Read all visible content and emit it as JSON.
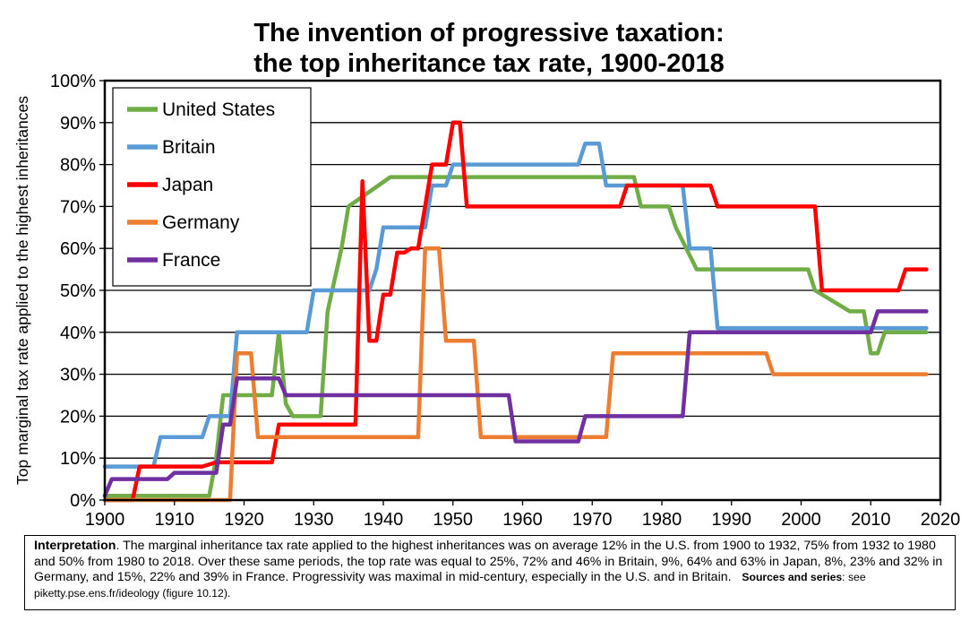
{
  "chart_data": {
    "type": "line",
    "title": [
      "The invention of progressive taxation:",
      "the top inheritance tax rate, 1900-2018"
    ],
    "ylabel": "Top marginal tax rate applied to the highest inheritances",
    "xlabel": "",
    "xlim": [
      1900,
      2020
    ],
    "ylim": [
      0,
      100
    ],
    "x_ticks": [
      1900,
      1910,
      1920,
      1930,
      1940,
      1950,
      1960,
      1970,
      1980,
      1990,
      2000,
      2010,
      2020
    ],
    "y_ticks": [
      0,
      10,
      20,
      30,
      40,
      50,
      60,
      70,
      80,
      90,
      100
    ],
    "y_tick_labels": [
      "0%",
      "10%",
      "20%",
      "30%",
      "40%",
      "50%",
      "60%",
      "70%",
      "80%",
      "90%",
      "100%"
    ],
    "grid": "horizontal",
    "legend": "top-left",
    "series": [
      {
        "name": "United States",
        "color": "#70ad47",
        "points": [
          [
            1900,
            1
          ],
          [
            1915,
            1
          ],
          [
            1916,
            10
          ],
          [
            1917,
            25
          ],
          [
            1924,
            25
          ],
          [
            1925,
            40
          ],
          [
            1926,
            23
          ],
          [
            1927,
            20
          ],
          [
            1931,
            20
          ],
          [
            1932,
            45
          ],
          [
            1934,
            60
          ],
          [
            1935,
            70
          ],
          [
            1941,
            77
          ],
          [
            1976,
            77
          ],
          [
            1977,
            70
          ],
          [
            1981,
            70
          ],
          [
            1982,
            65
          ],
          [
            1985,
            55
          ],
          [
            2001,
            55
          ],
          [
            2002,
            50
          ],
          [
            2007,
            45
          ],
          [
            2009,
            45
          ],
          [
            2010,
            35
          ],
          [
            2011,
            35
          ],
          [
            2012,
            40
          ],
          [
            2018,
            40
          ]
        ]
      },
      {
        "name": "Britain",
        "color": "#5b9bd5",
        "points": [
          [
            1900,
            8
          ],
          [
            1907,
            8
          ],
          [
            1908,
            15
          ],
          [
            1914,
            15
          ],
          [
            1915,
            20
          ],
          [
            1918,
            20
          ],
          [
            1919,
            40
          ],
          [
            1929,
            40
          ],
          [
            1930,
            50
          ],
          [
            1938,
            50
          ],
          [
            1939,
            55
          ],
          [
            1940,
            65
          ],
          [
            1946,
            65
          ],
          [
            1947,
            75
          ],
          [
            1949,
            75
          ],
          [
            1950,
            80
          ],
          [
            1968,
            80
          ],
          [
            1969,
            85
          ],
          [
            1971,
            85
          ],
          [
            1972,
            75
          ],
          [
            1983,
            75
          ],
          [
            1984,
            60
          ],
          [
            1987,
            60
          ],
          [
            1988,
            41
          ],
          [
            2018,
            41
          ]
        ]
      },
      {
        "name": "Japan",
        "color": "#ff0000",
        "points": [
          [
            1900,
            0
          ],
          [
            1904,
            0
          ],
          [
            1905,
            8
          ],
          [
            1914,
            8
          ],
          [
            1916,
            9
          ],
          [
            1924,
            9
          ],
          [
            1925,
            18
          ],
          [
            1936,
            18
          ],
          [
            1937,
            76
          ],
          [
            1938,
            38
          ],
          [
            1939,
            38
          ],
          [
            1940,
            49
          ],
          [
            1941,
            49
          ],
          [
            1942,
            59
          ],
          [
            1943,
            59
          ],
          [
            1944,
            60
          ],
          [
            1945,
            60
          ],
          [
            1947,
            80
          ],
          [
            1949,
            80
          ],
          [
            1950,
            90
          ],
          [
            1951,
            90
          ],
          [
            1952,
            70
          ],
          [
            1974,
            70
          ],
          [
            1975,
            75
          ],
          [
            1987,
            75
          ],
          [
            1988,
            70
          ],
          [
            2002,
            70
          ],
          [
            2003,
            50
          ],
          [
            2014,
            50
          ],
          [
            2015,
            55
          ],
          [
            2018,
            55
          ]
        ]
      },
      {
        "name": "Germany",
        "color": "#ed7d31",
        "points": [
          [
            1900,
            0
          ],
          [
            1918,
            0
          ],
          [
            1919,
            35
          ],
          [
            1921,
            35
          ],
          [
            1922,
            15
          ],
          [
            1945,
            15
          ],
          [
            1946,
            60
          ],
          [
            1948,
            60
          ],
          [
            1949,
            38
          ],
          [
            1953,
            38
          ],
          [
            1954,
            15
          ],
          [
            1972,
            15
          ],
          [
            1973,
            35
          ],
          [
            1995,
            35
          ],
          [
            1996,
            30
          ],
          [
            2018,
            30
          ]
        ]
      },
      {
        "name": "France",
        "color": "#7030a0",
        "points": [
          [
            1900,
            1
          ],
          [
            1901,
            5
          ],
          [
            1909,
            5
          ],
          [
            1910,
            6.5
          ],
          [
            1916,
            6.5
          ],
          [
            1917,
            18
          ],
          [
            1918,
            18
          ],
          [
            1919,
            29
          ],
          [
            1925,
            29
          ],
          [
            1926,
            25
          ],
          [
            1958,
            25
          ],
          [
            1959,
            14
          ],
          [
            1968,
            14
          ],
          [
            1969,
            20
          ],
          [
            1983,
            20
          ],
          [
            1984,
            40
          ],
          [
            2010,
            40
          ],
          [
            2011,
            45
          ],
          [
            2018,
            45
          ]
        ]
      }
    ]
  },
  "interpretation": {
    "label": "Interpretation",
    "text": ". The marginal inheritance tax rate applied to the highest inheritances was on average 12% in the U.S. from 1900 to 1932, 75% from 1932 to 1980 and 50% from 1980 to 2018. Over these same periods, the top rate was equal to 25%, 72% and 46% in Britain, 9%, 64% and 63% in Japan, 8%, 23% and 32% in Germany, and 15%, 22% and 39% in France. Progressivity was maximal in mid-century, especially in the U.S. and in Britain.",
    "sources_label": "Sources and series",
    "sources_text": ": see piketty.pse.ens.fr/ideology (figure 10.12)."
  }
}
